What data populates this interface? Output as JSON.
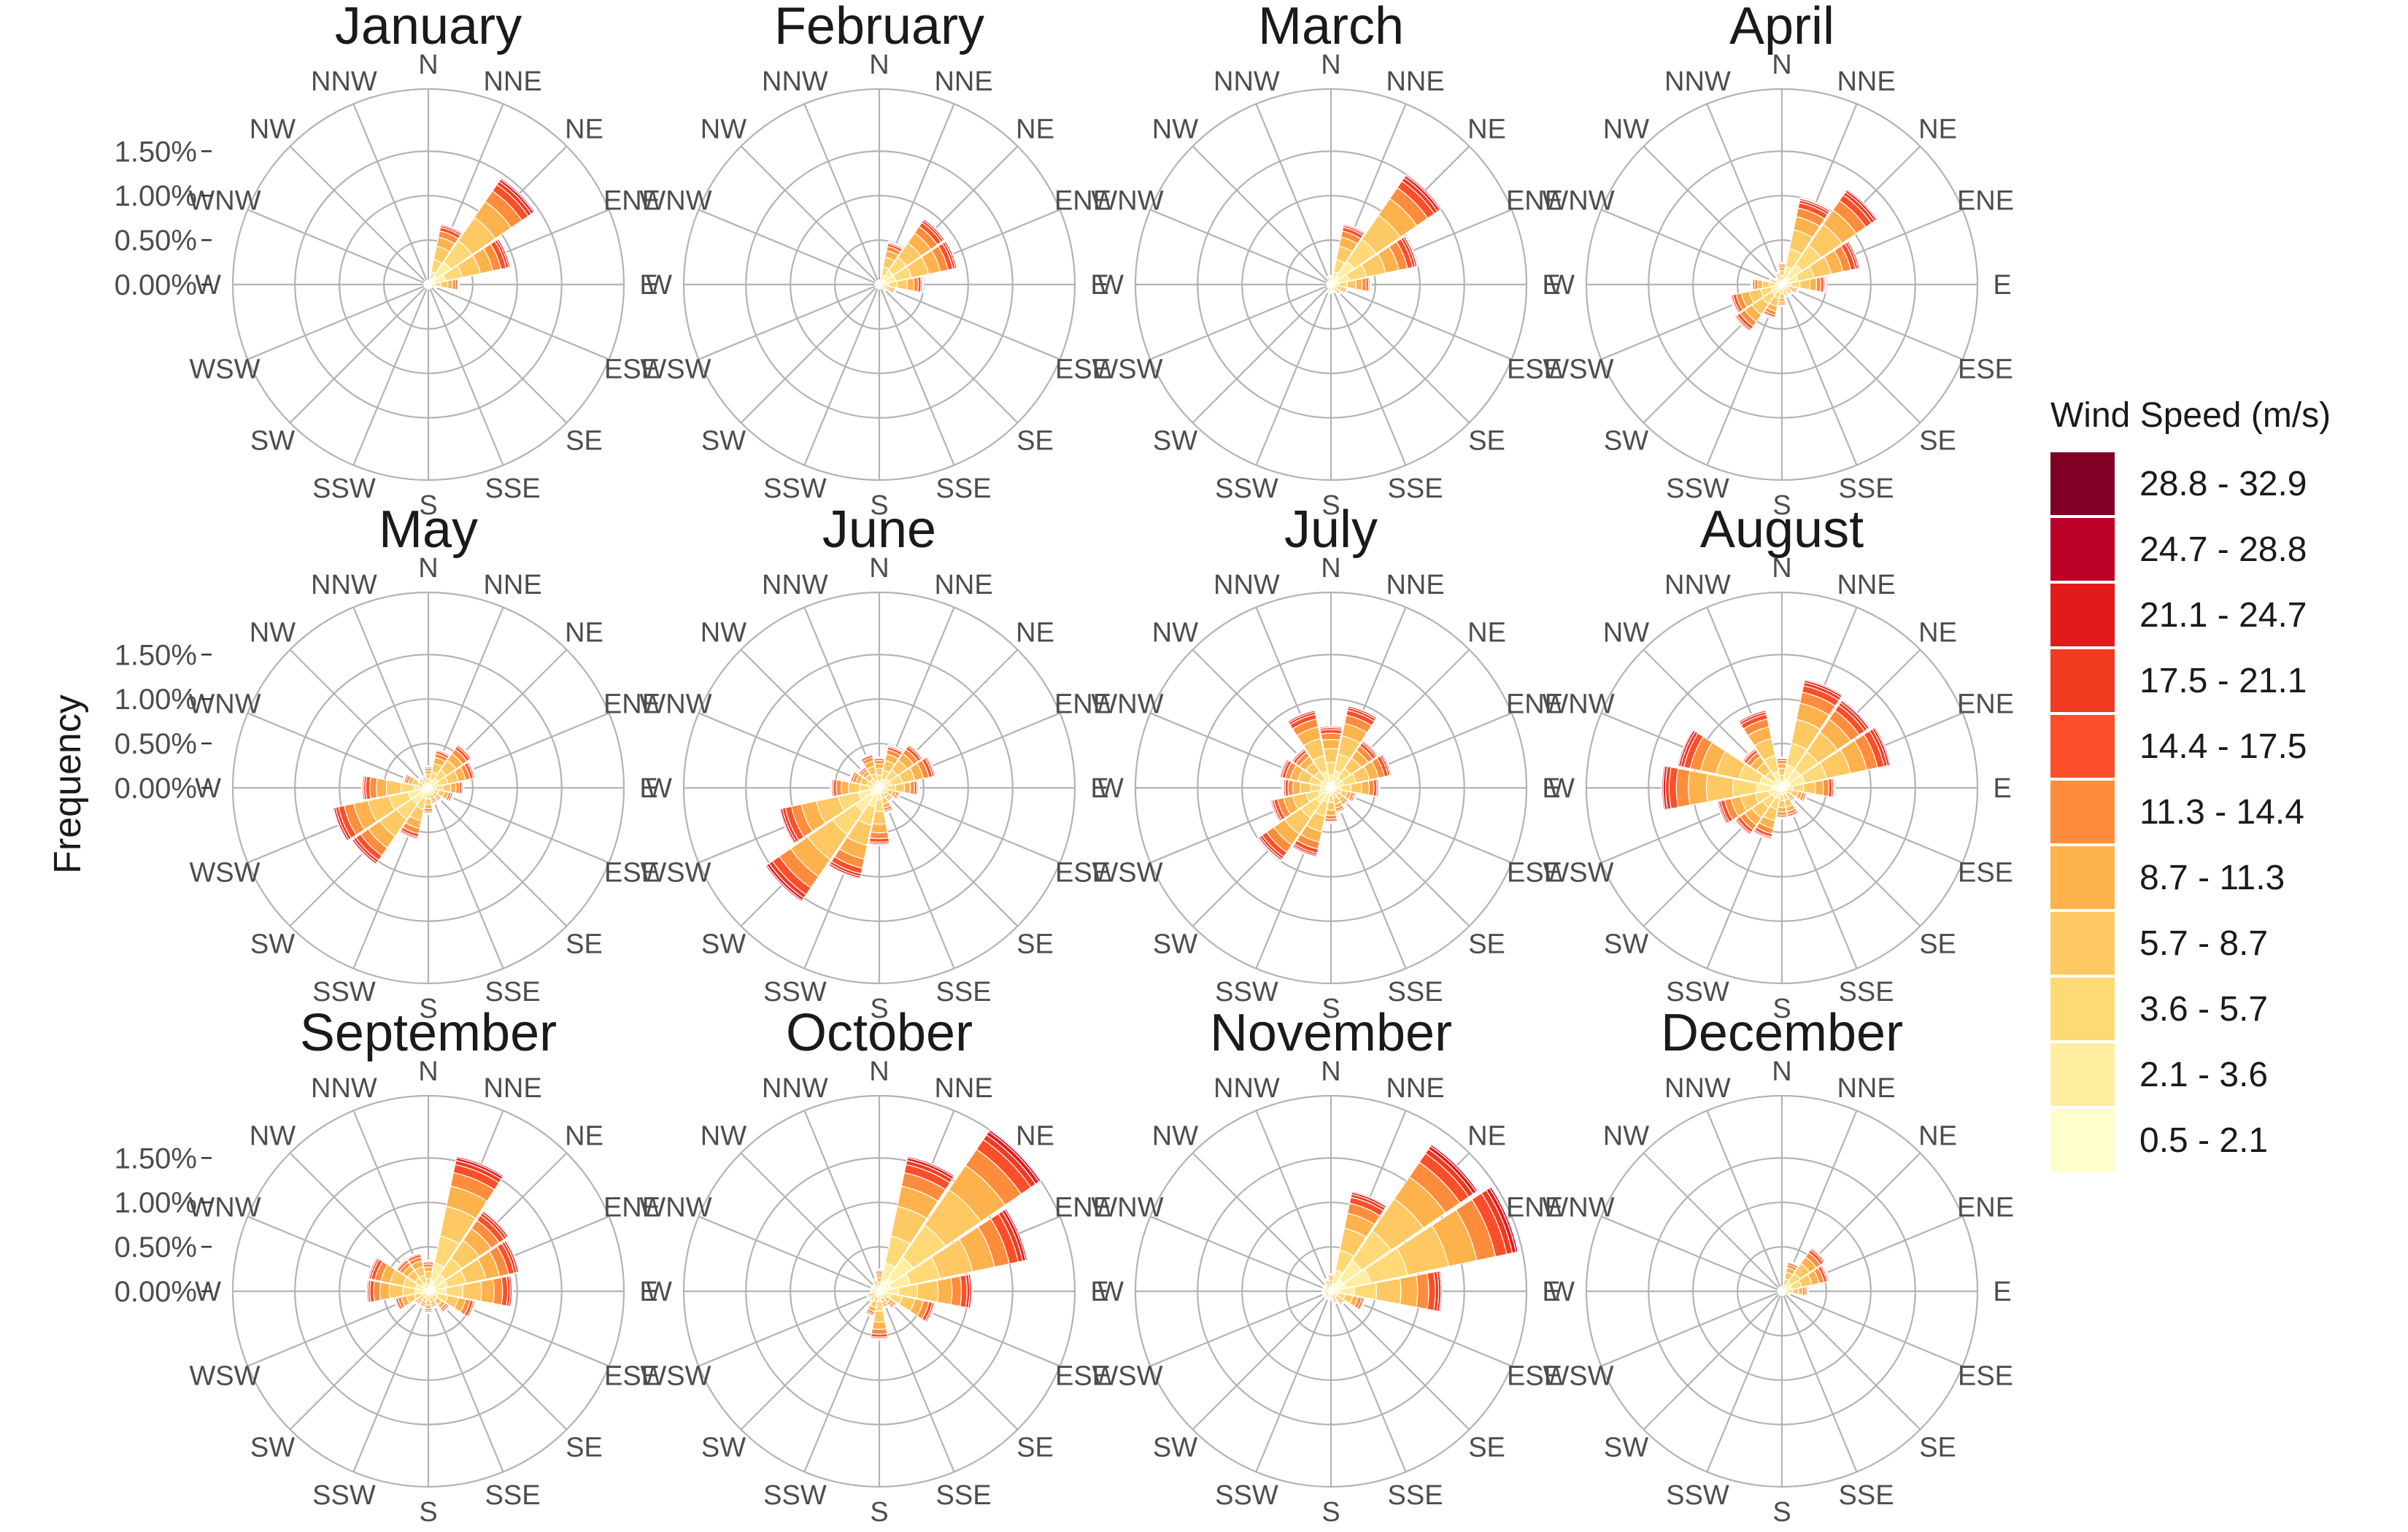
{
  "chart_data": {
    "type": "polar-stacked-bar",
    "ylabel": "Frequency",
    "r_ticks": [
      "0.00%",
      "0.50%",
      "1.00%",
      "1.50%"
    ],
    "r_tick_values": [
      0,
      0.5,
      1.0,
      1.5
    ],
    "directions": [
      "N",
      "NNE",
      "NE",
      "ENE",
      "E",
      "ESE",
      "SE",
      "SSE",
      "S",
      "SSW",
      "SW",
      "WSW",
      "W",
      "WNW",
      "NW",
      "NNW"
    ],
    "legend": {
      "title": "Wind Speed (m/s)",
      "bins": [
        "28.8 - 32.9",
        "24.7 - 28.8",
        "21.1 - 24.7",
        "17.5 - 21.1",
        "14.4 - 17.5",
        "11.3 - 14.4",
        "8.7 - 11.3",
        "5.7 - 8.7",
        "3.6 - 5.7",
        "2.1 - 3.6",
        "0.5 - 2.1"
      ],
      "colors": [
        "#800026",
        "#bd0026",
        "#e31a1c",
        "#f03b20",
        "#fc4e2a",
        "#fd8d3c",
        "#feb24c",
        "#fec862",
        "#fed976",
        "#ffeda0",
        "#ffffcc"
      ]
    },
    "stack_colors_low_to_high": [
      "#ffffcc",
      "#ffeda0",
      "#fed976",
      "#fec862",
      "#feb24c",
      "#fd8d3c",
      "#fc4e2a",
      "#f03b20",
      "#e31a1c",
      "#bd0026"
    ],
    "stack_fractions": [
      0.08,
      0.13,
      0.2,
      0.22,
      0.15,
      0.1,
      0.06,
      0.03,
      0.02,
      0.01
    ],
    "months": [
      {
        "title": "January",
        "totals": [
          0.05,
          0.7,
          1.45,
          0.95,
          0.35,
          0.1,
          0.05,
          0.05,
          0.05,
          0.05,
          0.05,
          0.05,
          0.05,
          0.05,
          0.05,
          0.05
        ]
      },
      {
        "title": "February",
        "totals": [
          0.05,
          0.5,
          0.9,
          0.9,
          0.5,
          0.2,
          0.1,
          0.05,
          0.05,
          0.05,
          0.05,
          0.05,
          0.05,
          0.05,
          0.05,
          0.05
        ]
      },
      {
        "title": "March",
        "totals": [
          0.1,
          0.7,
          1.5,
          1.0,
          0.45,
          0.2,
          0.15,
          0.1,
          0.1,
          0.1,
          0.05,
          0.05,
          0.05,
          0.05,
          0.05,
          0.1
        ]
      },
      {
        "title": "April",
        "totals": [
          0.25,
          1.0,
          1.3,
          0.9,
          0.5,
          0.2,
          0.15,
          0.15,
          0.25,
          0.4,
          0.65,
          0.6,
          0.35,
          0.15,
          0.1,
          0.15
        ]
      },
      {
        "title": "May",
        "totals": [
          0.25,
          0.45,
          0.6,
          0.55,
          0.4,
          0.3,
          0.2,
          0.2,
          0.3,
          0.6,
          1.05,
          1.1,
          0.75,
          0.3,
          0.15,
          0.15
        ]
      },
      {
        "title": "June",
        "totals": [
          0.35,
          0.5,
          0.6,
          0.65,
          0.45,
          0.25,
          0.2,
          0.3,
          0.65,
          1.05,
          1.55,
          1.15,
          0.55,
          0.35,
          0.3,
          0.4
        ]
      },
      {
        "title": "July",
        "totals": [
          0.7,
          0.95,
          0.65,
          0.7,
          0.55,
          0.3,
          0.25,
          0.3,
          0.4,
          0.8,
          1.0,
          0.7,
          0.55,
          0.6,
          0.55,
          0.9
        ]
      },
      {
        "title": "August",
        "totals": [
          0.35,
          1.25,
          1.2,
          1.25,
          0.6,
          0.3,
          0.2,
          0.35,
          0.35,
          0.6,
          0.65,
          0.75,
          1.35,
          1.2,
          0.55,
          0.9
        ]
      },
      {
        "title": "September",
        "totals": [
          0.35,
          1.55,
          1.1,
          1.05,
          0.95,
          0.55,
          0.3,
          0.2,
          0.25,
          0.2,
          0.2,
          0.4,
          0.7,
          0.7,
          0.45,
          0.45
        ]
      },
      {
        "title": "October",
        "totals": [
          0.25,
          1.55,
          2.2,
          1.7,
          1.05,
          0.65,
          0.25,
          0.2,
          0.55,
          0.3,
          0.15,
          0.15,
          0.1,
          0.1,
          0.1,
          0.15
        ]
      },
      {
        "title": "November",
        "totals": [
          0.2,
          1.15,
          2.0,
          2.15,
          1.25,
          0.4,
          0.2,
          0.15,
          0.1,
          0.1,
          0.1,
          0.1,
          0.1,
          0.1,
          0.1,
          0.15
        ]
      },
      {
        "title": "December",
        "totals": [
          0.05,
          0.35,
          0.6,
          0.55,
          0.3,
          0.1,
          0.05,
          0.05,
          0.05,
          0.05,
          0.05,
          0.05,
          0.05,
          0.05,
          0.05,
          0.05
        ]
      }
    ]
  }
}
